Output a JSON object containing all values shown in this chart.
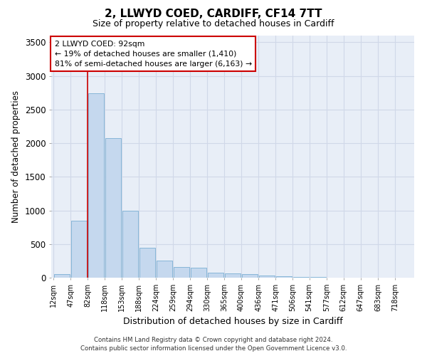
{
  "title": "2, LLWYD COED, CARDIFF, CF14 7TT",
  "subtitle": "Size of property relative to detached houses in Cardiff",
  "xlabel": "Distribution of detached houses by size in Cardiff",
  "ylabel": "Number of detached properties",
  "bar_labels": [
    "12sqm",
    "47sqm",
    "82sqm",
    "118sqm",
    "153sqm",
    "188sqm",
    "224sqm",
    "259sqm",
    "294sqm",
    "330sqm",
    "365sqm",
    "400sqm",
    "436sqm",
    "471sqm",
    "506sqm",
    "541sqm",
    "577sqm",
    "612sqm",
    "647sqm",
    "683sqm",
    "718sqm"
  ],
  "bar_values": [
    55,
    850,
    2740,
    2075,
    1000,
    450,
    250,
    155,
    150,
    75,
    60,
    50,
    30,
    20,
    12,
    8,
    5,
    3,
    2,
    2,
    1
  ],
  "bar_color": "#c5d8ee",
  "bar_edge_color": "#7aafd4",
  "grid_color": "#d0d8e8",
  "background_color": "#e8eef7",
  "annotation_title": "2 LLWYD COED: 92sqm",
  "annotation_line1": "← 19% of detached houses are smaller (1,410)",
  "annotation_line2": "81% of semi-detached houses are larger (6,163) →",
  "annotation_box_color": "#ffffff",
  "annotation_box_edge_color": "#cc0000",
  "vline_color": "#cc0000",
  "footer_line1": "Contains HM Land Registry data © Crown copyright and database right 2024.",
  "footer_line2": "Contains public sector information licensed under the Open Government Licence v3.0.",
  "ylim": [
    0,
    3600
  ],
  "yticks": [
    0,
    500,
    1000,
    1500,
    2000,
    2500,
    3000,
    3500
  ],
  "bin_edges": [
    12,
    47,
    82,
    118,
    153,
    188,
    224,
    259,
    294,
    330,
    365,
    400,
    436,
    471,
    506,
    541,
    577,
    612,
    647,
    683,
    718,
    753
  ],
  "vline_x": 82
}
